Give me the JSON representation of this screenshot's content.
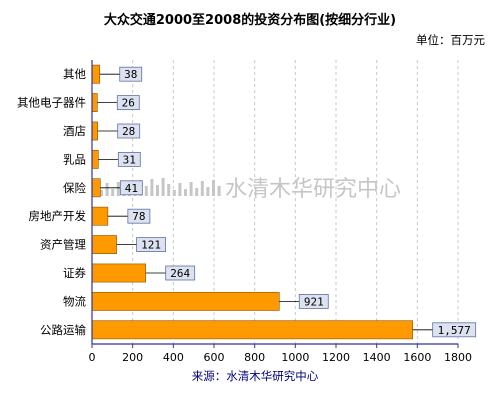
{
  "chart_data": {
    "type": "bar",
    "orientation": "horizontal",
    "title": "大众交通2000至2008的投资分布图(按细分行业)",
    "unit_label": "单位：百万元",
    "source": "来源：水清木华研究中心",
    "watermark": "水清木华研究中心",
    "categories": [
      "其他",
      "其他电子器件",
      "酒店",
      "乳品",
      "保险",
      "房地产开发",
      "资产管理",
      "证券",
      "物流",
      "公路运输"
    ],
    "values": [
      38,
      26,
      28,
      31,
      41,
      78,
      121,
      264,
      921,
      1577
    ],
    "value_labels": [
      "38",
      "26",
      "28",
      "31",
      "41",
      "78",
      "121",
      "264",
      "921",
      "1,577"
    ],
    "xlim": [
      0,
      1800
    ],
    "x_ticks": [
      "0",
      "200",
      "400",
      "600",
      "800",
      "1000",
      "1200",
      "1400",
      "1600",
      "1800"
    ],
    "grid": true,
    "legend": "none",
    "colors": {
      "bar": "#ff9900",
      "bar_edge": "#8a5200",
      "label_bg": "#dde2f0",
      "label_border": "#6070a0",
      "axis": "#333399",
      "grid": "#c8c8c8",
      "source_text": "#000080",
      "watermark": "#c6c6c6"
    }
  }
}
